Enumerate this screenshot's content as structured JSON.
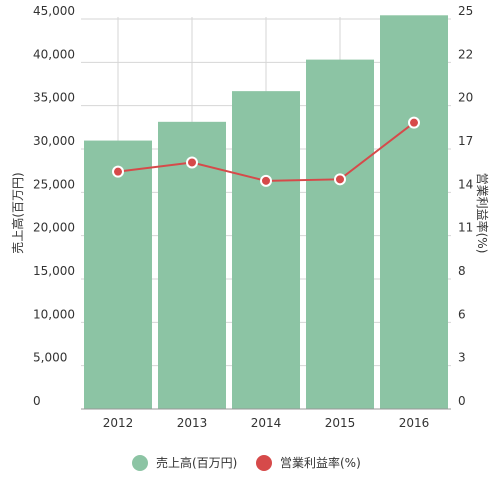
{
  "chart_data": {
    "type": "bar+line",
    "categories": [
      "2012",
      "2013",
      "2014",
      "2015",
      "2016"
    ],
    "series": [
      {
        "name": "売上高(百万円)",
        "type": "bar",
        "axis": "left",
        "values": [
          31500,
          33700,
          37300,
          41000,
          46200
        ],
        "color": "#8cc4a4"
      },
      {
        "name": "営業利益率(%)",
        "type": "line",
        "axis": "right",
        "values": [
          15.5,
          16.1,
          14.9,
          15.0,
          18.7
        ],
        "color": "#d64a4a"
      }
    ],
    "ylabel": "売上高(百万円)",
    "y2label": "営業利益率(%)",
    "ylim": [
      0,
      46000
    ],
    "y2lim": [
      0,
      25.6
    ],
    "yticks": [
      "0",
      "5,000",
      "10,000",
      "15,000",
      "20,000",
      "25,000",
      "30,000",
      "35,000",
      "40,000",
      "45,000"
    ],
    "y2ticks": [
      "0",
      "3",
      "6",
      "8",
      "11",
      "14",
      "17",
      "20",
      "22",
      "25"
    ],
    "grid": true,
    "legend": "bottom"
  }
}
